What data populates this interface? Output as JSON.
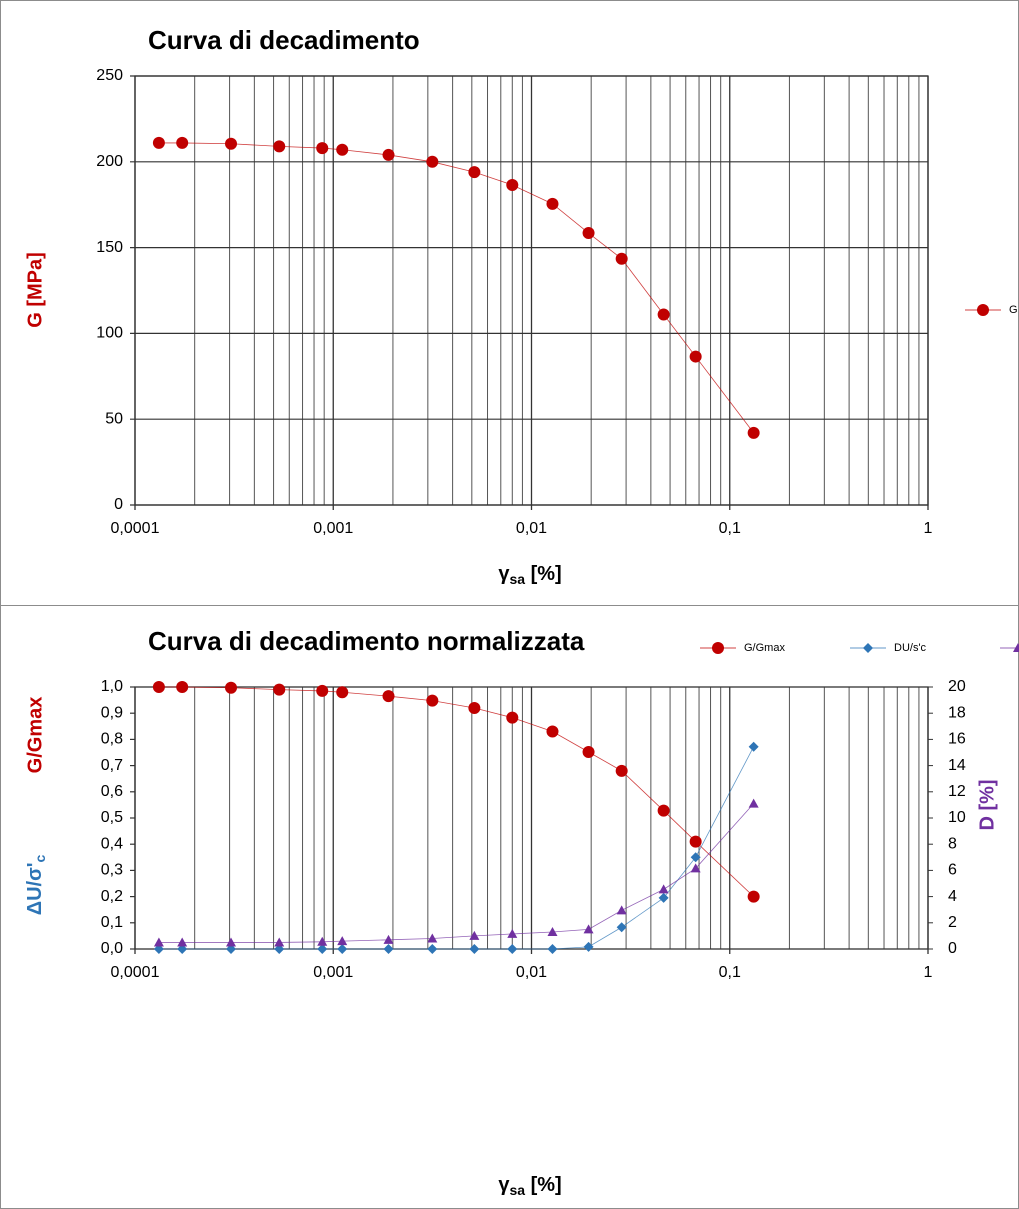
{
  "chart_data": [
    {
      "type": "line",
      "title": "Curva di decadimento",
      "x_label": {
        "text": "γ",
        "subscript": "sa",
        "suffix": "[%]"
      },
      "y_label": "G [MPa]",
      "x_scale": "log",
      "xlim": [
        0.0001,
        1
      ],
      "xticks": [
        {
          "value": 0.0001,
          "label": "0,0001"
        },
        {
          "value": 0.001,
          "label": "0,001"
        },
        {
          "value": 0.01,
          "label": "0,01"
        },
        {
          "value": 0.1,
          "label": "0,1"
        },
        1
      ],
      "minor_grid": true,
      "grid": true,
      "legend": "right",
      "ylim": [
        0,
        250
      ],
      "yticks": [
        0,
        50,
        100,
        150,
        200,
        250
      ],
      "x": [
        0.000132,
        0.000173,
        0.000305,
        0.000534,
        0.00088,
        0.00111,
        0.0019,
        0.00316,
        0.00515,
        0.008,
        0.01276,
        0.0194,
        0.0285,
        0.0464,
        0.0673,
        0.132
      ],
      "series": [
        {
          "name": "G",
          "color": "#c00000",
          "marker": "circle",
          "values": [
            211,
            211,
            210.5,
            209,
            208,
            207,
            204,
            200,
            194,
            186.5,
            175.5,
            158.5,
            143.5,
            111,
            86.5,
            42
          ]
        }
      ]
    },
    {
      "type": "line",
      "title": "Curva di decadimento normalizzata",
      "x_label": {
        "text": "γ",
        "subscript": "sa",
        "suffix": "[%]"
      },
      "y_label": "G/Gmax",
      "y_label_2": {
        "text": "ΔU/σ'",
        "subscript": "c"
      },
      "y2_label": "D [%]",
      "x_scale": "log",
      "xlim": [
        0.0001,
        1
      ],
      "xticks": [
        {
          "value": 0.0001,
          "label": "0,0001"
        },
        {
          "value": 0.001,
          "label": "0,001"
        },
        {
          "value": 0.01,
          "label": "0,01"
        },
        {
          "value": 0.1,
          "label": "0,1"
        },
        1
      ],
      "minor_grid": true,
      "grid": false,
      "legend": "top",
      "ylim": [
        0,
        1
      ],
      "yticks": [
        {
          "value": 0,
          "label": "0,0"
        },
        {
          "value": 0.1,
          "label": "0,1"
        },
        {
          "value": 0.2,
          "label": "0,2"
        },
        {
          "value": 0.3,
          "label": "0,3"
        },
        {
          "value": 0.4,
          "label": "0,4"
        },
        {
          "value": 0.5,
          "label": "0,5"
        },
        {
          "value": 0.6,
          "label": "0,6"
        },
        {
          "value": 0.7,
          "label": "0,7"
        },
        {
          "value": 0.8,
          "label": "0,8"
        },
        {
          "value": 0.9,
          "label": "0,9"
        },
        {
          "value": 1,
          "label": "1,0"
        }
      ],
      "y2lim": [
        0,
        20
      ],
      "y2ticks": [
        0,
        2,
        4,
        6,
        8,
        10,
        12,
        14,
        16,
        18,
        20
      ],
      "x": [
        0.000132,
        0.000173,
        0.000305,
        0.000534,
        0.00088,
        0.00111,
        0.0019,
        0.00316,
        0.00515,
        0.008,
        0.01276,
        0.0194,
        0.0285,
        0.0464,
        0.0673,
        0.132
      ],
      "series": [
        {
          "name": "G/Gmax",
          "color": "#c00000",
          "marker": "circle",
          "values": [
            1.0,
            1.0,
            0.997,
            0.99,
            0.985,
            0.98,
            0.965,
            0.948,
            0.92,
            0.883,
            0.83,
            0.752,
            0.68,
            0.528,
            0.41,
            0.2
          ]
        },
        {
          "name": "DU/s'c",
          "color": "#2e75b6",
          "marker": "diamond",
          "values": [
            0,
            0,
            0,
            0,
            0,
            0,
            0,
            0,
            0,
            0,
            0,
            0.008,
            0.083,
            0.195,
            0.35,
            0.772
          ]
        },
        {
          "name": "D",
          "color": "#7030a0",
          "marker": "triangle",
          "axis": "y2",
          "values": [
            0.5,
            0.5,
            0.5,
            0.5,
            0.55,
            0.6,
            0.7,
            0.8,
            1.0,
            1.15,
            1.3,
            1.5,
            2.95,
            4.55,
            6.15,
            11.1
          ]
        }
      ]
    }
  ]
}
